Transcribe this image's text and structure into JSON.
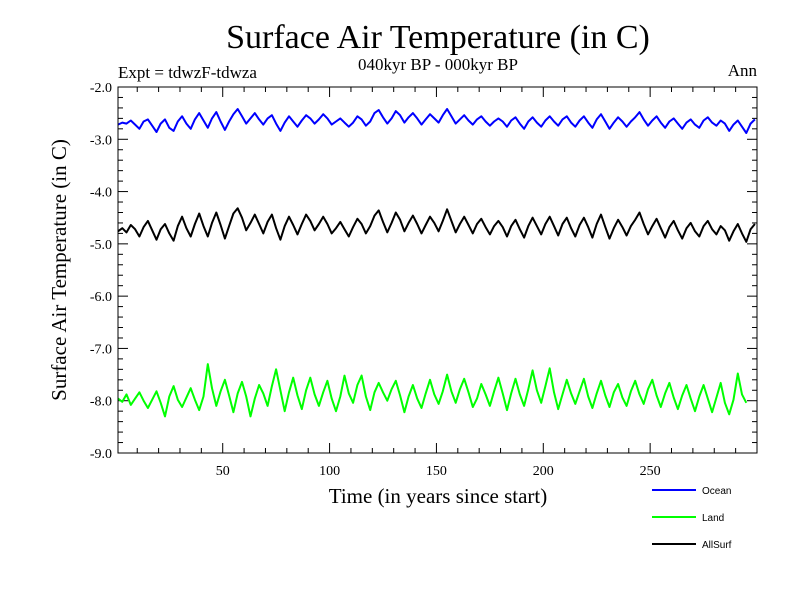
{
  "header": {
    "title": "Surface Air Temperature (in C)",
    "subtitle": "040kyr BP - 000kyr BP",
    "left_label": "Expt = tdwzF-tdwza",
    "right_label": "Ann"
  },
  "chart_data": {
    "type": "line",
    "xlabel": "Time (in years since start)",
    "ylabel": "Surface Air Temperature (in C)",
    "xlim": [
      1,
      300
    ],
    "ylim": [
      -9.0,
      -2.0
    ],
    "x_ticks": [
      50,
      100,
      150,
      200,
      250
    ],
    "y_ticks": [
      -2.0,
      -3.0,
      -4.0,
      -5.0,
      -6.0,
      -7.0,
      -8.0,
      -9.0
    ],
    "y_tick_labels": [
      "-2.0",
      "-3.0",
      "-4.0",
      "-5.0",
      "-6.0",
      "-7.0",
      "-8.0",
      "-9.0"
    ],
    "grid": false,
    "legend_position": "bottom-right, below plot",
    "x_start": 1,
    "x_step": 2,
    "series": [
      {
        "name": "Ocean",
        "color": "#0000ff",
        "values": [
          -2.72,
          -2.68,
          -2.7,
          -2.64,
          -2.72,
          -2.8,
          -2.66,
          -2.62,
          -2.74,
          -2.86,
          -2.7,
          -2.62,
          -2.78,
          -2.84,
          -2.66,
          -2.56,
          -2.7,
          -2.8,
          -2.62,
          -2.5,
          -2.64,
          -2.78,
          -2.6,
          -2.48,
          -2.66,
          -2.82,
          -2.66,
          -2.52,
          -2.42,
          -2.56,
          -2.7,
          -2.6,
          -2.5,
          -2.62,
          -2.72,
          -2.6,
          -2.54,
          -2.7,
          -2.84,
          -2.68,
          -2.56,
          -2.66,
          -2.76,
          -2.64,
          -2.54,
          -2.6,
          -2.7,
          -2.62,
          -2.52,
          -2.6,
          -2.72,
          -2.66,
          -2.6,
          -2.68,
          -2.76,
          -2.68,
          -2.56,
          -2.62,
          -2.74,
          -2.66,
          -2.5,
          -2.44,
          -2.58,
          -2.7,
          -2.6,
          -2.46,
          -2.54,
          -2.68,
          -2.58,
          -2.5,
          -2.6,
          -2.72,
          -2.62,
          -2.52,
          -2.6,
          -2.68,
          -2.54,
          -2.42,
          -2.56,
          -2.7,
          -2.62,
          -2.54,
          -2.64,
          -2.72,
          -2.62,
          -2.56,
          -2.66,
          -2.74,
          -2.66,
          -2.6,
          -2.66,
          -2.76,
          -2.64,
          -2.58,
          -2.7,
          -2.8,
          -2.66,
          -2.58,
          -2.68,
          -2.76,
          -2.64,
          -2.56,
          -2.66,
          -2.74,
          -2.62,
          -2.56,
          -2.68,
          -2.76,
          -2.64,
          -2.56,
          -2.68,
          -2.78,
          -2.62,
          -2.52,
          -2.66,
          -2.8,
          -2.68,
          -2.58,
          -2.66,
          -2.76,
          -2.66,
          -2.58,
          -2.48,
          -2.62,
          -2.74,
          -2.64,
          -2.56,
          -2.68,
          -2.78,
          -2.66,
          -2.6,
          -2.7,
          -2.8,
          -2.68,
          -2.62,
          -2.72,
          -2.78,
          -2.64,
          -2.58,
          -2.68,
          -2.74,
          -2.64,
          -2.7,
          -2.84,
          -2.72,
          -2.64,
          -2.76,
          -2.88,
          -2.7,
          -2.62
        ]
      },
      {
        "name": "Land",
        "color": "#00ff00",
        "values": [
          -7.96,
          -8.02,
          -7.88,
          -8.08,
          -7.96,
          -7.84,
          -8.0,
          -8.14,
          -7.98,
          -7.82,
          -8.04,
          -8.3,
          -7.92,
          -7.72,
          -7.98,
          -8.12,
          -7.94,
          -7.76,
          -7.98,
          -8.18,
          -7.92,
          -7.3,
          -7.76,
          -8.1,
          -7.82,
          -7.6,
          -7.9,
          -8.22,
          -7.86,
          -7.64,
          -7.92,
          -8.3,
          -7.96,
          -7.7,
          -7.86,
          -8.1,
          -7.72,
          -7.4,
          -7.8,
          -8.2,
          -7.84,
          -7.56,
          -7.9,
          -8.16,
          -7.8,
          -7.56,
          -7.88,
          -8.1,
          -7.84,
          -7.62,
          -7.96,
          -8.2,
          -7.92,
          -7.52,
          -7.86,
          -8.04,
          -7.7,
          -7.52,
          -7.92,
          -8.18,
          -7.84,
          -7.66,
          -7.84,
          -8.0,
          -7.78,
          -7.62,
          -7.9,
          -8.22,
          -7.92,
          -7.7,
          -7.96,
          -8.14,
          -7.86,
          -7.6,
          -7.88,
          -8.06,
          -7.82,
          -7.5,
          -7.82,
          -8.04,
          -7.78,
          -7.58,
          -7.84,
          -8.12,
          -7.96,
          -7.68,
          -7.88,
          -8.1,
          -7.82,
          -7.56,
          -7.86,
          -8.18,
          -7.86,
          -7.58,
          -7.88,
          -8.1,
          -7.78,
          -7.42,
          -7.8,
          -8.04,
          -7.72,
          -7.38,
          -7.84,
          -8.16,
          -7.88,
          -7.6,
          -7.86,
          -8.06,
          -7.82,
          -7.58,
          -7.92,
          -8.14,
          -7.86,
          -7.62,
          -7.9,
          -8.12,
          -7.84,
          -7.68,
          -7.94,
          -8.1,
          -7.82,
          -7.62,
          -7.88,
          -8.06,
          -7.78,
          -7.6,
          -7.9,
          -8.12,
          -7.86,
          -7.66,
          -7.94,
          -8.16,
          -7.9,
          -7.7,
          -7.96,
          -8.2,
          -7.92,
          -7.7,
          -7.96,
          -8.22,
          -7.94,
          -7.66,
          -8.04,
          -8.26,
          -7.98,
          -7.48,
          -7.88,
          -8.04
        ]
      },
      {
        "name": "AllSurf",
        "color": "#000000",
        "values": [
          -4.76,
          -4.7,
          -4.78,
          -4.64,
          -4.72,
          -4.86,
          -4.68,
          -4.56,
          -4.74,
          -4.92,
          -4.72,
          -4.62,
          -4.8,
          -4.94,
          -4.66,
          -4.48,
          -4.7,
          -4.86,
          -4.62,
          -4.42,
          -4.66,
          -4.86,
          -4.6,
          -4.4,
          -4.64,
          -4.9,
          -4.66,
          -4.42,
          -4.32,
          -4.5,
          -4.74,
          -4.6,
          -4.44,
          -4.62,
          -4.8,
          -4.58,
          -4.44,
          -4.7,
          -4.92,
          -4.66,
          -4.48,
          -4.64,
          -4.82,
          -4.62,
          -4.44,
          -4.56,
          -4.74,
          -4.62,
          -4.48,
          -4.62,
          -4.8,
          -4.7,
          -4.58,
          -4.72,
          -4.86,
          -4.68,
          -4.52,
          -4.62,
          -4.8,
          -4.66,
          -4.46,
          -4.36,
          -4.58,
          -4.78,
          -4.6,
          -4.4,
          -4.54,
          -4.76,
          -4.6,
          -4.46,
          -4.62,
          -4.8,
          -4.64,
          -4.48,
          -4.6,
          -4.76,
          -4.56,
          -4.34,
          -4.56,
          -4.78,
          -4.62,
          -4.48,
          -4.64,
          -4.8,
          -4.62,
          -4.52,
          -4.68,
          -4.82,
          -4.66,
          -4.56,
          -4.68,
          -4.86,
          -4.66,
          -4.54,
          -4.72,
          -4.88,
          -4.66,
          -4.5,
          -4.66,
          -4.82,
          -4.62,
          -4.48,
          -4.66,
          -4.84,
          -4.62,
          -4.5,
          -4.7,
          -4.86,
          -4.64,
          -4.5,
          -4.68,
          -4.88,
          -4.62,
          -4.44,
          -4.68,
          -4.9,
          -4.7,
          -4.54,
          -4.68,
          -4.84,
          -4.66,
          -4.54,
          -4.4,
          -4.62,
          -4.82,
          -4.66,
          -4.52,
          -4.7,
          -4.88,
          -4.68,
          -4.56,
          -4.74,
          -4.9,
          -4.7,
          -4.6,
          -4.76,
          -4.86,
          -4.66,
          -4.56,
          -4.72,
          -4.82,
          -4.66,
          -4.74,
          -4.94,
          -4.76,
          -4.62,
          -4.8,
          -4.96,
          -4.72,
          -4.62
        ]
      }
    ]
  }
}
